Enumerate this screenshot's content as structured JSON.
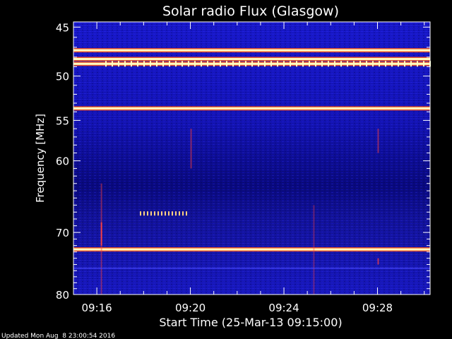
{
  "chart_data": {
    "type": "heatmap",
    "title": "Solar radio Flux (Glasgow)",
    "xlabel": "Start Time (25-Mar-13 09:15:00)",
    "ylabel": "Frequency [MHz]",
    "x_ticks": [
      "09:16",
      "09:20",
      "09:24",
      "09:28"
    ],
    "y_ticks": [
      "45",
      "50",
      "55",
      "60",
      "70",
      "80"
    ],
    "x_range": [
      "09:15:00",
      "09:30:15"
    ],
    "y_range_mhz": [
      44.5,
      80
    ],
    "y_scale": "log",
    "colormap": "blue-to-white (blue/black background, red/yellow/white hot bands)",
    "interference_bands_mhz": [
      47.3,
      48.2,
      48.7,
      53.6,
      72.6
    ],
    "footer": "Updated Mon Aug  8 23:00:54 2016"
  },
  "colors": {
    "background": "#000000",
    "base_blue": "#1a1ad6",
    "band_hot": "#ffffc0",
    "band_edge": "#ff5a1a"
  }
}
